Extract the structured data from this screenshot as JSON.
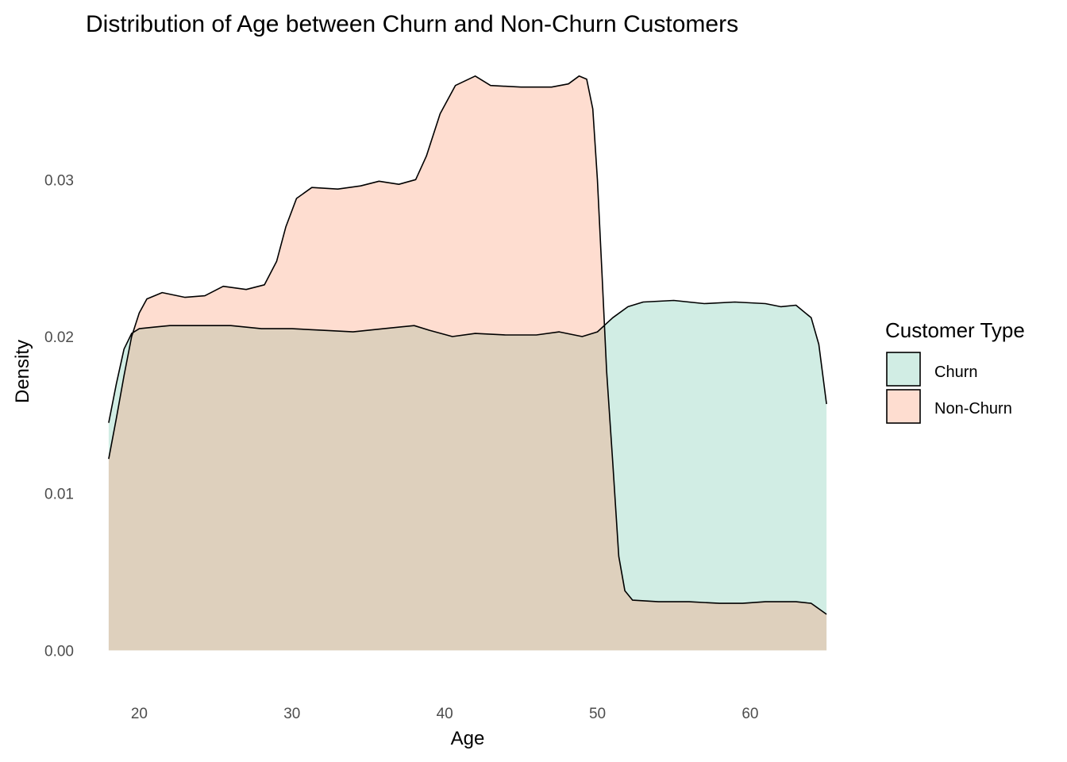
{
  "chart_data": {
    "type": "area",
    "subtype": "density",
    "title": "Distribution of Age between Churn and Non-Churn Customers",
    "xlabel": "Age",
    "ylabel": "Density",
    "xlim": [
      16.6,
      66.4
    ],
    "ylim": [
      -0.0018,
      0.0374
    ],
    "x_ticks": [
      20,
      30,
      40,
      50,
      60
    ],
    "y_ticks": [
      0.0,
      0.01,
      0.02,
      0.03
    ],
    "y_tick_labels": [
      "0.00",
      "0.01",
      "0.02",
      "0.03"
    ],
    "grid": false,
    "legend": {
      "title": "Customer Type",
      "position": "right"
    },
    "series": [
      {
        "name": "Churn",
        "color": "#66C2A5",
        "fill_opacity": 0.3,
        "points": [
          [
            18.0,
            0.0145
          ],
          [
            18.5,
            0.017
          ],
          [
            19.0,
            0.0192
          ],
          [
            19.5,
            0.0202
          ],
          [
            20.0,
            0.0205
          ],
          [
            21.0,
            0.0206
          ],
          [
            22.0,
            0.0207
          ],
          [
            24.0,
            0.0207
          ],
          [
            26.0,
            0.0207
          ],
          [
            28.0,
            0.0205
          ],
          [
            30.0,
            0.0205
          ],
          [
            32.0,
            0.0204
          ],
          [
            34.0,
            0.0203
          ],
          [
            36.0,
            0.0205
          ],
          [
            38.0,
            0.0207
          ],
          [
            39.0,
            0.0204
          ],
          [
            40.5,
            0.02
          ],
          [
            42.0,
            0.0202
          ],
          [
            44.0,
            0.0201
          ],
          [
            46.0,
            0.0201
          ],
          [
            47.5,
            0.0203
          ],
          [
            49.0,
            0.02
          ],
          [
            50.0,
            0.0203
          ],
          [
            51.0,
            0.0212
          ],
          [
            52.0,
            0.0219
          ],
          [
            53.0,
            0.0222
          ],
          [
            55.0,
            0.0223
          ],
          [
            57.0,
            0.0221
          ],
          [
            59.0,
            0.0222
          ],
          [
            61.0,
            0.0221
          ],
          [
            62.0,
            0.0219
          ],
          [
            63.0,
            0.022
          ],
          [
            64.0,
            0.0212
          ],
          [
            64.5,
            0.0195
          ],
          [
            65.0,
            0.0157
          ]
        ]
      },
      {
        "name": "Non-Churn",
        "color": "#FC8D62",
        "fill_opacity": 0.3,
        "points": [
          [
            18.0,
            0.0122
          ],
          [
            18.5,
            0.0148
          ],
          [
            19.0,
            0.0175
          ],
          [
            19.5,
            0.02
          ],
          [
            20.0,
            0.0215
          ],
          [
            20.5,
            0.0224
          ],
          [
            21.5,
            0.0228
          ],
          [
            23.0,
            0.0225
          ],
          [
            24.3,
            0.0226
          ],
          [
            25.5,
            0.0232
          ],
          [
            27.0,
            0.023
          ],
          [
            28.2,
            0.0233
          ],
          [
            29.0,
            0.0248
          ],
          [
            29.6,
            0.027
          ],
          [
            30.3,
            0.0288
          ],
          [
            31.3,
            0.0295
          ],
          [
            33.0,
            0.0294
          ],
          [
            34.5,
            0.0296
          ],
          [
            35.7,
            0.0299
          ],
          [
            37.0,
            0.0297
          ],
          [
            38.1,
            0.03
          ],
          [
            38.8,
            0.0315
          ],
          [
            39.7,
            0.0342
          ],
          [
            40.7,
            0.036
          ],
          [
            42.0,
            0.0366
          ],
          [
            43.0,
            0.036
          ],
          [
            45.0,
            0.0359
          ],
          [
            47.0,
            0.0359
          ],
          [
            48.1,
            0.0361
          ],
          [
            48.8,
            0.0366
          ],
          [
            49.3,
            0.0364
          ],
          [
            49.7,
            0.0345
          ],
          [
            50.0,
            0.03
          ],
          [
            50.3,
            0.024
          ],
          [
            50.6,
            0.0178
          ],
          [
            51.0,
            0.012
          ],
          [
            51.4,
            0.006
          ],
          [
            51.8,
            0.0038
          ],
          [
            52.3,
            0.0032
          ],
          [
            54.0,
            0.0031
          ],
          [
            56.0,
            0.0031
          ],
          [
            58.0,
            0.003
          ],
          [
            59.5,
            0.003
          ],
          [
            61.0,
            0.0031
          ],
          [
            63.0,
            0.0031
          ],
          [
            64.0,
            0.003
          ],
          [
            65.0,
            0.0023
          ]
        ]
      }
    ]
  }
}
